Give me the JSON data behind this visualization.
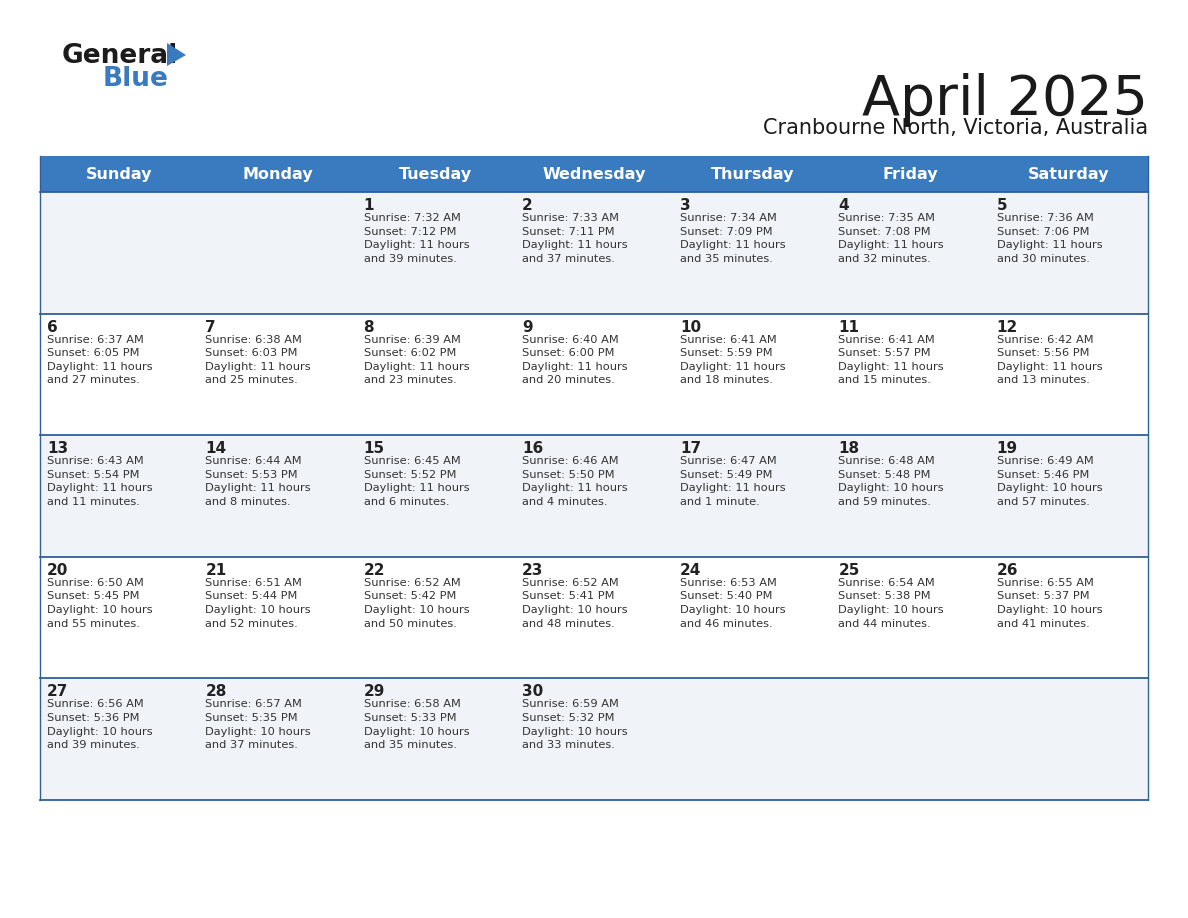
{
  "title": "April 2025",
  "subtitle": "Cranbourne North, Victoria, Australia",
  "header_bg_color": "#3a7abf",
  "header_text_color": "#ffffff",
  "cell_bg_color_odd": "#f0f4f8",
  "cell_bg_color_even": "#ffffff",
  "border_color": "#2e5f9e",
  "text_color": "#333333",
  "days_of_week": [
    "Sunday",
    "Monday",
    "Tuesday",
    "Wednesday",
    "Thursday",
    "Friday",
    "Saturday"
  ],
  "weeks": [
    [
      {
        "day": "",
        "info": ""
      },
      {
        "day": "",
        "info": ""
      },
      {
        "day": "1",
        "info": "Sunrise: 7:32 AM\nSunset: 7:12 PM\nDaylight: 11 hours\nand 39 minutes."
      },
      {
        "day": "2",
        "info": "Sunrise: 7:33 AM\nSunset: 7:11 PM\nDaylight: 11 hours\nand 37 minutes."
      },
      {
        "day": "3",
        "info": "Sunrise: 7:34 AM\nSunset: 7:09 PM\nDaylight: 11 hours\nand 35 minutes."
      },
      {
        "day": "4",
        "info": "Sunrise: 7:35 AM\nSunset: 7:08 PM\nDaylight: 11 hours\nand 32 minutes."
      },
      {
        "day": "5",
        "info": "Sunrise: 7:36 AM\nSunset: 7:06 PM\nDaylight: 11 hours\nand 30 minutes."
      }
    ],
    [
      {
        "day": "6",
        "info": "Sunrise: 6:37 AM\nSunset: 6:05 PM\nDaylight: 11 hours\nand 27 minutes."
      },
      {
        "day": "7",
        "info": "Sunrise: 6:38 AM\nSunset: 6:03 PM\nDaylight: 11 hours\nand 25 minutes."
      },
      {
        "day": "8",
        "info": "Sunrise: 6:39 AM\nSunset: 6:02 PM\nDaylight: 11 hours\nand 23 minutes."
      },
      {
        "day": "9",
        "info": "Sunrise: 6:40 AM\nSunset: 6:00 PM\nDaylight: 11 hours\nand 20 minutes."
      },
      {
        "day": "10",
        "info": "Sunrise: 6:41 AM\nSunset: 5:59 PM\nDaylight: 11 hours\nand 18 minutes."
      },
      {
        "day": "11",
        "info": "Sunrise: 6:41 AM\nSunset: 5:57 PM\nDaylight: 11 hours\nand 15 minutes."
      },
      {
        "day": "12",
        "info": "Sunrise: 6:42 AM\nSunset: 5:56 PM\nDaylight: 11 hours\nand 13 minutes."
      }
    ],
    [
      {
        "day": "13",
        "info": "Sunrise: 6:43 AM\nSunset: 5:54 PM\nDaylight: 11 hours\nand 11 minutes."
      },
      {
        "day": "14",
        "info": "Sunrise: 6:44 AM\nSunset: 5:53 PM\nDaylight: 11 hours\nand 8 minutes."
      },
      {
        "day": "15",
        "info": "Sunrise: 6:45 AM\nSunset: 5:52 PM\nDaylight: 11 hours\nand 6 minutes."
      },
      {
        "day": "16",
        "info": "Sunrise: 6:46 AM\nSunset: 5:50 PM\nDaylight: 11 hours\nand 4 minutes."
      },
      {
        "day": "17",
        "info": "Sunrise: 6:47 AM\nSunset: 5:49 PM\nDaylight: 11 hours\nand 1 minute."
      },
      {
        "day": "18",
        "info": "Sunrise: 6:48 AM\nSunset: 5:48 PM\nDaylight: 10 hours\nand 59 minutes."
      },
      {
        "day": "19",
        "info": "Sunrise: 6:49 AM\nSunset: 5:46 PM\nDaylight: 10 hours\nand 57 minutes."
      }
    ],
    [
      {
        "day": "20",
        "info": "Sunrise: 6:50 AM\nSunset: 5:45 PM\nDaylight: 10 hours\nand 55 minutes."
      },
      {
        "day": "21",
        "info": "Sunrise: 6:51 AM\nSunset: 5:44 PM\nDaylight: 10 hours\nand 52 minutes."
      },
      {
        "day": "22",
        "info": "Sunrise: 6:52 AM\nSunset: 5:42 PM\nDaylight: 10 hours\nand 50 minutes."
      },
      {
        "day": "23",
        "info": "Sunrise: 6:52 AM\nSunset: 5:41 PM\nDaylight: 10 hours\nand 48 minutes."
      },
      {
        "day": "24",
        "info": "Sunrise: 6:53 AM\nSunset: 5:40 PM\nDaylight: 10 hours\nand 46 minutes."
      },
      {
        "day": "25",
        "info": "Sunrise: 6:54 AM\nSunset: 5:38 PM\nDaylight: 10 hours\nand 44 minutes."
      },
      {
        "day": "26",
        "info": "Sunrise: 6:55 AM\nSunset: 5:37 PM\nDaylight: 10 hours\nand 41 minutes."
      }
    ],
    [
      {
        "day": "27",
        "info": "Sunrise: 6:56 AM\nSunset: 5:36 PM\nDaylight: 10 hours\nand 39 minutes."
      },
      {
        "day": "28",
        "info": "Sunrise: 6:57 AM\nSunset: 5:35 PM\nDaylight: 10 hours\nand 37 minutes."
      },
      {
        "day": "29",
        "info": "Sunrise: 6:58 AM\nSunset: 5:33 PM\nDaylight: 10 hours\nand 35 minutes."
      },
      {
        "day": "30",
        "info": "Sunrise: 6:59 AM\nSunset: 5:32 PM\nDaylight: 10 hours\nand 33 minutes."
      },
      {
        "day": "",
        "info": ""
      },
      {
        "day": "",
        "info": ""
      },
      {
        "day": "",
        "info": ""
      }
    ]
  ],
  "fig_width": 11.88,
  "fig_height": 9.18,
  "dpi": 100
}
